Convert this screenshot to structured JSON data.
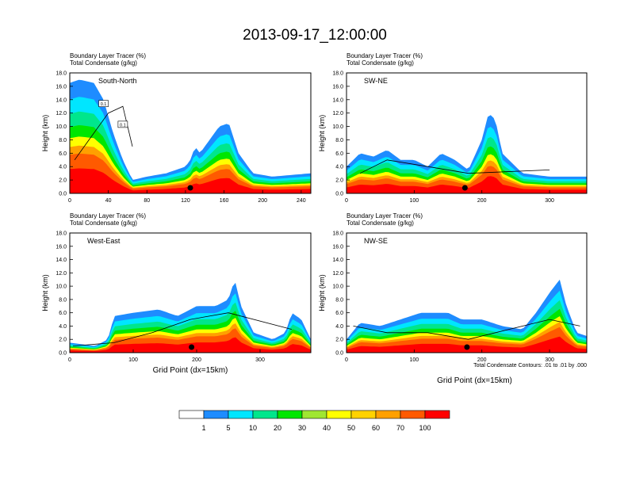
{
  "figure": {
    "title": "2013-09-17_12:00:00",
    "contour_note": "Total Condensate Contours: .01 to .01 by .000"
  },
  "colors": [
    "#ffffff",
    "#1e8cff",
    "#00e6ff",
    "#00e68c",
    "#00e600",
    "#a0e632",
    "#ffff00",
    "#ffd200",
    "#ffa000",
    "#ff5a00",
    "#ff0000"
  ],
  "colorbar": {
    "labels": [
      "1",
      "5",
      "10",
      "20",
      "30",
      "40",
      "50",
      "60",
      "70",
      "100"
    ]
  },
  "chart_data": [
    {
      "type": "heatmap",
      "panel": "South-North",
      "left_titles": [
        "Boundary Layer Tracer    (%)",
        "Total Condensate    (g/kg)"
      ],
      "ylabel": "Height (km)",
      "xlabel": "",
      "xlim": [
        0,
        250
      ],
      "ylim": [
        0,
        18
      ],
      "xticks": [
        "0",
        "40",
        "80",
        "120",
        "160",
        "200",
        "240"
      ],
      "yticks": [
        "0.0",
        "2.0",
        "4.0",
        "6.0",
        "8.0",
        "10.0",
        "12.0",
        "14.0",
        "16.0",
        "18.0"
      ],
      "contour_labels": [
        "0.1",
        "0.1"
      ],
      "marker_x": 125,
      "tracer_top_km": [
        [
          0,
          16.5
        ],
        [
          10,
          17
        ],
        [
          25,
          16.5
        ],
        [
          35,
          14
        ],
        [
          45,
          9
        ],
        [
          55,
          5
        ],
        [
          65,
          2
        ],
        [
          80,
          2.5
        ],
        [
          100,
          3
        ],
        [
          120,
          4
        ],
        [
          125,
          5
        ],
        [
          130,
          7
        ],
        [
          135,
          6
        ],
        [
          145,
          8
        ],
        [
          155,
          10
        ],
        [
          165,
          10.5
        ],
        [
          175,
          6
        ],
        [
          190,
          3
        ],
        [
          210,
          2.5
        ],
        [
          250,
          3
        ]
      ],
      "contour_tops_km": [
        [
          5,
          5
        ],
        [
          20,
          8
        ],
        [
          40,
          12
        ],
        [
          55,
          13
        ],
        [
          65,
          7
        ]
      ]
    },
    {
      "type": "heatmap",
      "panel": "SW-NE",
      "left_titles": [
        "Boundary Layer Tracer    (%)",
        "Total Condensate    (g/kg)"
      ],
      "ylabel": "Height (km)",
      "xlabel": "",
      "xlim": [
        0,
        355
      ],
      "ylim": [
        0,
        18
      ],
      "xticks": [
        "0",
        "100",
        "200",
        "300"
      ],
      "yticks": [
        "0.0",
        "2.0",
        "4.0",
        "6.0",
        "8.0",
        "10.0",
        "12.0",
        "14.0",
        "16.0",
        "18.0"
      ],
      "contour_labels": [],
      "marker_x": 175,
      "tracer_top_km": [
        [
          0,
          4
        ],
        [
          20,
          6
        ],
        [
          40,
          5.5
        ],
        [
          60,
          6.5
        ],
        [
          80,
          5
        ],
        [
          100,
          5
        ],
        [
          120,
          4
        ],
        [
          140,
          6
        ],
        [
          160,
          5
        ],
        [
          180,
          3.5
        ],
        [
          200,
          8
        ],
        [
          210,
          12
        ],
        [
          220,
          11
        ],
        [
          230,
          6
        ],
        [
          260,
          3
        ],
        [
          300,
          2.5
        ],
        [
          355,
          2.5
        ]
      ],
      "contour_tops_km": [
        [
          20,
          3
        ],
        [
          60,
          5
        ],
        [
          120,
          4
        ],
        [
          180,
          3
        ],
        [
          300,
          3.5
        ]
      ]
    },
    {
      "type": "heatmap",
      "panel": "West-East",
      "left_titles": [
        "Boundary Layer Tracer    (%)",
        "Total Condensate    (g/kg)"
      ],
      "ylabel": "Height (km)",
      "xlabel": "Grid Point (dx=15km)",
      "xlim": [
        0,
        380
      ],
      "ylim": [
        0,
        18
      ],
      "xticks": [
        "0",
        "100",
        "200",
        "300"
      ],
      "yticks": [
        "0.0",
        "2.0",
        "4.0",
        "6.0",
        "8.0",
        "10.0",
        "12.0",
        "14.0",
        "16.0",
        "18.0"
      ],
      "contour_labels": [],
      "marker_x": 192,
      "tracer_top_km": [
        [
          0,
          1.5
        ],
        [
          40,
          1
        ],
        [
          60,
          2
        ],
        [
          70,
          5.5
        ],
        [
          100,
          6
        ],
        [
          140,
          6.5
        ],
        [
          170,
          5.5
        ],
        [
          200,
          7
        ],
        [
          230,
          7
        ],
        [
          250,
          8
        ],
        [
          260,
          11
        ],
        [
          270,
          7
        ],
        [
          290,
          3
        ],
        [
          320,
          2
        ],
        [
          340,
          3
        ],
        [
          350,
          6
        ],
        [
          365,
          5
        ],
        [
          380,
          2
        ]
      ],
      "contour_tops_km": [
        [
          5,
          1
        ],
        [
          70,
          1.5
        ],
        [
          130,
          3
        ],
        [
          190,
          5
        ],
        [
          250,
          6
        ],
        [
          350,
          3.5
        ]
      ]
    },
    {
      "type": "heatmap",
      "panel": "NW-SE",
      "left_titles": [
        "Boundary Layer Tracer    (%)",
        "Total Condensate    (g/kg)"
      ],
      "ylabel": "Height (km)",
      "xlabel": "Grid Point (dx=15km)",
      "xlim": [
        0,
        355
      ],
      "ylim": [
        0,
        18
      ],
      "xticks": [
        "0",
        "100",
        "200",
        "300"
      ],
      "yticks": [
        "0.0",
        "2.0",
        "4.0",
        "6.0",
        "8.0",
        "10.0",
        "12.0",
        "14.0",
        "16.0",
        "18.0"
      ],
      "contour_labels": [],
      "marker_x": 178,
      "tracer_top_km": [
        [
          0,
          2
        ],
        [
          20,
          4.5
        ],
        [
          50,
          4
        ],
        [
          80,
          5
        ],
        [
          110,
          6
        ],
        [
          150,
          6
        ],
        [
          170,
          5
        ],
        [
          200,
          5
        ],
        [
          230,
          4
        ],
        [
          260,
          3.5
        ],
        [
          280,
          6
        ],
        [
          300,
          9
        ],
        [
          315,
          11
        ],
        [
          325,
          7
        ],
        [
          340,
          3
        ],
        [
          355,
          2.5
        ]
      ],
      "contour_tops_km": [
        [
          10,
          4
        ],
        [
          60,
          3
        ],
        [
          120,
          3
        ],
        [
          180,
          2
        ],
        [
          300,
          5
        ],
        [
          345,
          4
        ]
      ]
    }
  ]
}
